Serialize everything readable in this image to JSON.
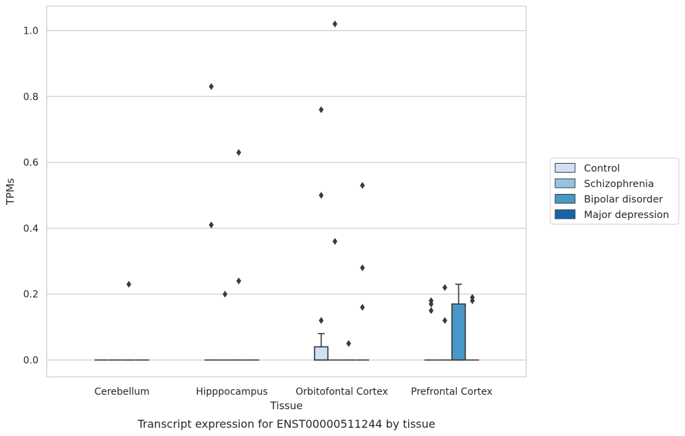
{
  "chart_data": {
    "type": "box",
    "title": "",
    "xlabel": "Tissue",
    "ylabel": "TPMs",
    "caption": "Transcript expression for ENST00000511244 by tissue",
    "ylim": [
      -0.05,
      1.07
    ],
    "yticks": [
      0.0,
      0.2,
      0.4,
      0.6,
      0.8,
      1.0
    ],
    "ytick_labels": [
      "0.0",
      "0.2",
      "0.4",
      "0.6",
      "0.8",
      "1.0"
    ],
    "grid": "horizontal",
    "legend_position": "right",
    "categories": [
      "Cerebellum",
      "Hipppocampus",
      "Orbitofontal Cortex",
      "Prefrontal Cortex"
    ],
    "series": [
      {
        "name": "Control",
        "color": "#d0e1f2",
        "boxes": [
          {
            "category": "Cerebellum",
            "q1": 0,
            "median": 0,
            "q3": 0,
            "whisker_low": 0,
            "whisker_high": 0,
            "outliers": []
          },
          {
            "category": "Hipppocampus",
            "q1": 0,
            "median": 0,
            "q3": 0,
            "whisker_low": 0,
            "whisker_high": 0,
            "outliers": [
              0.83,
              0.41
            ]
          },
          {
            "category": "Orbitofontal Cortex",
            "q1": 0,
            "median": 0,
            "q3": 0.04,
            "whisker_low": 0,
            "whisker_high": 0.08,
            "outliers": [
              0.76,
              0.5,
              0.12
            ]
          },
          {
            "category": "Prefrontal Cortex",
            "q1": 0,
            "median": 0,
            "q3": 0,
            "whisker_low": 0,
            "whisker_high": 0,
            "outliers": [
              0.18,
              0.17,
              0.15
            ]
          }
        ]
      },
      {
        "name": "Schizophrenia",
        "color": "#94c4df",
        "boxes": [
          {
            "category": "Cerebellum",
            "q1": 0,
            "median": 0,
            "q3": 0,
            "whisker_low": 0,
            "whisker_high": 0,
            "outliers": []
          },
          {
            "category": "Hipppocampus",
            "q1": 0,
            "median": 0,
            "q3": 0,
            "whisker_low": 0,
            "whisker_high": 0,
            "outliers": [
              0.2
            ]
          },
          {
            "category": "Orbitofontal Cortex",
            "q1": 0,
            "median": 0,
            "q3": 0,
            "whisker_low": 0,
            "whisker_high": 0,
            "outliers": [
              1.02,
              0.36
            ]
          },
          {
            "category": "Prefrontal Cortex",
            "q1": 0,
            "median": 0,
            "q3": 0,
            "whisker_low": 0,
            "whisker_high": 0,
            "outliers": [
              0.22,
              0.12
            ]
          }
        ]
      },
      {
        "name": "Bipolar disorder",
        "color": "#4a98c9",
        "boxes": [
          {
            "category": "Cerebellum",
            "q1": 0,
            "median": 0,
            "q3": 0,
            "whisker_low": 0,
            "whisker_high": 0,
            "outliers": [
              0.23
            ]
          },
          {
            "category": "Hipppocampus",
            "q1": 0,
            "median": 0,
            "q3": 0,
            "whisker_low": 0,
            "whisker_high": 0,
            "outliers": [
              0.63,
              0.24
            ]
          },
          {
            "category": "Orbitofontal Cortex",
            "q1": 0,
            "median": 0,
            "q3": 0,
            "whisker_low": 0,
            "whisker_high": 0,
            "outliers": [
              0.05
            ]
          },
          {
            "category": "Prefrontal Cortex",
            "q1": 0,
            "median": 0,
            "q3": 0.17,
            "whisker_low": 0,
            "whisker_high": 0.23,
            "outliers": []
          }
        ]
      },
      {
        "name": "Major depression",
        "color": "#1764ab",
        "boxes": [
          {
            "category": "Cerebellum",
            "q1": 0,
            "median": 0,
            "q3": 0,
            "whisker_low": 0,
            "whisker_high": 0,
            "outliers": []
          },
          {
            "category": "Hipppocampus",
            "q1": 0,
            "median": 0,
            "q3": 0,
            "whisker_low": 0,
            "whisker_high": 0,
            "outliers": []
          },
          {
            "category": "Orbitofontal Cortex",
            "q1": 0,
            "median": 0,
            "q3": 0,
            "whisker_low": 0,
            "whisker_high": 0,
            "outliers": [
              0.53,
              0.28,
              0.16
            ]
          },
          {
            "category": "Prefrontal Cortex",
            "q1": 0,
            "median": 0,
            "q3": 0,
            "whisker_low": 0,
            "whisker_high": 0,
            "outliers": [
              0.19,
              0.18
            ]
          }
        ]
      }
    ]
  }
}
